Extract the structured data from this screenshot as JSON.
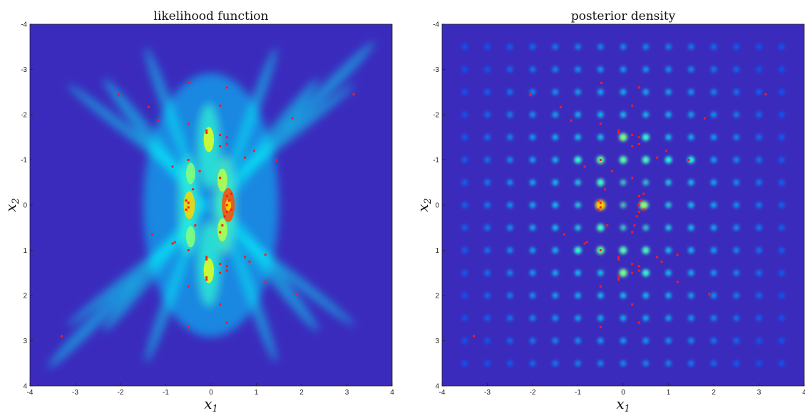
{
  "chart_data": [
    {
      "type": "heatmap",
      "title": "likelihood function",
      "xlabel": "x",
      "xlabel_sub": "1",
      "ylabel": "x",
      "ylabel_sub": "2",
      "xlim": [
        -4,
        4
      ],
      "ylim": [
        -4,
        4
      ],
      "y_axis_direction": "down",
      "x_ticks": [
        "-4",
        "-3",
        "-2",
        "-1",
        "0",
        "1",
        "2",
        "3",
        "4"
      ],
      "y_ticks": [
        "-4",
        "-3",
        "-2",
        "-1",
        "0",
        "1",
        "2",
        "3",
        "4"
      ],
      "grid": false,
      "colormap": "jet",
      "background_color": "#3a2bbd",
      "hot_spots": [
        {
          "x": 0.38,
          "y": 0.0,
          "level": 1.0
        },
        {
          "x": -0.48,
          "y": 0.0,
          "level": 0.7
        },
        {
          "x": -0.05,
          "y": -1.45,
          "level": 0.55
        },
        {
          "x": -0.05,
          "y": 1.45,
          "level": 0.55
        },
        {
          "x": 0.25,
          "y": -0.55,
          "level": 0.45
        },
        {
          "x": 0.25,
          "y": 0.55,
          "level": 0.45
        },
        {
          "x": -0.45,
          "y": -0.7,
          "level": 0.35
        },
        {
          "x": -0.45,
          "y": 0.7,
          "level": 0.35
        }
      ],
      "samples_color": "#ff1a1a",
      "samples": [
        [
          -3.3,
          2.9
        ],
        [
          3.15,
          -2.45
        ],
        [
          -2.05,
          -2.43
        ],
        [
          1.8,
          -1.92
        ],
        [
          1.9,
          1.97
        ],
        [
          -1.38,
          -2.17
        ],
        [
          -1.15,
          -1.87
        ],
        [
          -0.85,
          -0.85
        ],
        [
          -0.5,
          -1.0
        ],
        [
          -0.5,
          -1.8
        ],
        [
          -0.48,
          -2.7
        ],
        [
          0.35,
          -2.6
        ],
        [
          0.2,
          -2.2
        ],
        [
          0.2,
          -1.55
        ],
        [
          0.35,
          -1.5
        ],
        [
          0.35,
          -1.35
        ],
        [
          0.2,
          -1.3
        ],
        [
          -0.1,
          -1.65
        ],
        [
          -0.1,
          -1.6
        ],
        [
          0.75,
          -1.05
        ],
        [
          0.95,
          -1.2
        ],
        [
          1.45,
          -1.0
        ],
        [
          -0.25,
          -0.75
        ],
        [
          -0.4,
          -0.35
        ],
        [
          0.2,
          -0.6
        ],
        [
          -0.55,
          -0.1
        ],
        [
          -0.5,
          -0.05
        ],
        [
          -0.5,
          0.05
        ],
        [
          -0.55,
          0.1
        ],
        [
          0.35,
          -0.2
        ],
        [
          0.4,
          -0.1
        ],
        [
          0.35,
          0.0
        ],
        [
          0.45,
          0.1
        ],
        [
          0.35,
          0.15
        ],
        [
          0.45,
          -0.25
        ],
        [
          0.3,
          0.25
        ],
        [
          -0.35,
          0.45
        ],
        [
          0.25,
          0.45
        ],
        [
          0.2,
          0.6
        ],
        [
          -1.3,
          0.65
        ],
        [
          -0.85,
          0.85
        ],
        [
          -0.8,
          0.82
        ],
        [
          -0.5,
          1.0
        ],
        [
          -0.1,
          1.2
        ],
        [
          -0.1,
          1.15
        ],
        [
          -0.1,
          1.6
        ],
        [
          -0.1,
          1.65
        ],
        [
          0.2,
          1.3
        ],
        [
          0.2,
          1.5
        ],
        [
          0.35,
          1.35
        ],
        [
          0.35,
          1.45
        ],
        [
          0.75,
          1.15
        ],
        [
          0.85,
          1.25
        ],
        [
          1.2,
          1.1
        ],
        [
          1.2,
          1.7
        ],
        [
          -0.5,
          1.8
        ],
        [
          0.2,
          2.2
        ],
        [
          0.35,
          2.6
        ],
        [
          -0.5,
          2.7
        ]
      ]
    },
    {
      "type": "heatmap",
      "title": "posterior density",
      "xlabel": "x",
      "xlabel_sub": "1",
      "ylabel": "x",
      "ylabel_sub": "2",
      "xlim": [
        -4,
        4
      ],
      "ylim": [
        -4,
        4
      ],
      "y_axis_direction": "down",
      "x_ticks": [
        "-4",
        "-3",
        "-2",
        "-1",
        "0",
        "1",
        "2",
        "3",
        "4"
      ],
      "y_ticks": [
        "-4",
        "-3",
        "-2",
        "-1",
        "0",
        "1",
        "2",
        "3",
        "4"
      ],
      "grid": false,
      "colormap": "jet",
      "background_color": "#3a2bbd",
      "grid_peaks_spacing": 0.5,
      "strong_peaks": [
        {
          "x": -0.5,
          "y": 0.0,
          "level": 1.0
        },
        {
          "x": 0.45,
          "y": 0.0,
          "level": 0.6
        },
        {
          "x": 0.0,
          "y": -1.5,
          "level": 0.55
        },
        {
          "x": 0.0,
          "y": 1.5,
          "level": 0.55
        },
        {
          "x": -0.5,
          "y": -1.0,
          "level": 0.5
        },
        {
          "x": -0.5,
          "y": 1.0,
          "level": 0.5
        },
        {
          "x": 0.0,
          "y": -1.0,
          "level": 0.45
        },
        {
          "x": 0.0,
          "y": 1.0,
          "level": 0.45
        },
        {
          "x": -0.5,
          "y": -0.5,
          "level": 0.4
        },
        {
          "x": -0.5,
          "y": 0.5,
          "level": 0.4
        },
        {
          "x": 0.5,
          "y": -1.0,
          "level": 0.4
        },
        {
          "x": 0.5,
          "y": 1.0,
          "level": 0.4
        },
        {
          "x": -1.0,
          "y": -1.0,
          "level": 0.35
        },
        {
          "x": -1.0,
          "y": 1.0,
          "level": 0.35
        },
        {
          "x": 0.5,
          "y": -1.5,
          "level": 0.35
        },
        {
          "x": 0.5,
          "y": 1.5,
          "level": 0.35
        },
        {
          "x": 1.0,
          "y": -1.0,
          "level": 0.3
        },
        {
          "x": 1.5,
          "y": -1.0,
          "level": 0.3
        }
      ],
      "samples_color": "#ff1a1a",
      "samples": [
        [
          -3.3,
          2.9
        ],
        [
          3.15,
          -2.45
        ],
        [
          -2.05,
          -2.43
        ],
        [
          1.8,
          -1.92
        ],
        [
          1.9,
          1.97
        ],
        [
          -1.38,
          -2.17
        ],
        [
          -1.15,
          -1.87
        ],
        [
          -0.85,
          -0.85
        ],
        [
          -0.5,
          -1.0
        ],
        [
          -0.5,
          -1.8
        ],
        [
          -0.48,
          -2.7
        ],
        [
          0.35,
          -2.6
        ],
        [
          0.2,
          -2.2
        ],
        [
          0.2,
          -1.55
        ],
        [
          0.35,
          -1.5
        ],
        [
          0.35,
          -1.35
        ],
        [
          0.2,
          -1.3
        ],
        [
          -0.1,
          -1.65
        ],
        [
          -0.1,
          -1.6
        ],
        [
          0.75,
          -1.05
        ],
        [
          0.95,
          -1.2
        ],
        [
          1.45,
          -1.0
        ],
        [
          -0.25,
          -0.75
        ],
        [
          -0.4,
          -0.35
        ],
        [
          0.2,
          -0.6
        ],
        [
          -0.55,
          -0.1
        ],
        [
          -0.5,
          -0.05
        ],
        [
          -0.5,
          0.05
        ],
        [
          -0.55,
          0.1
        ],
        [
          0.35,
          -0.2
        ],
        [
          0.4,
          -0.1
        ],
        [
          0.35,
          0.0
        ],
        [
          0.45,
          0.1
        ],
        [
          0.35,
          0.15
        ],
        [
          0.45,
          -0.25
        ],
        [
          0.3,
          0.25
        ],
        [
          -0.35,
          0.45
        ],
        [
          0.25,
          0.45
        ],
        [
          0.2,
          0.6
        ],
        [
          -1.3,
          0.65
        ],
        [
          -0.85,
          0.85
        ],
        [
          -0.8,
          0.82
        ],
        [
          -0.5,
          1.0
        ],
        [
          -0.1,
          1.2
        ],
        [
          -0.1,
          1.15
        ],
        [
          -0.1,
          1.6
        ],
        [
          -0.1,
          1.65
        ],
        [
          0.2,
          1.3
        ],
        [
          0.2,
          1.5
        ],
        [
          0.35,
          1.35
        ],
        [
          0.35,
          1.45
        ],
        [
          0.75,
          1.15
        ],
        [
          0.85,
          1.25
        ],
        [
          1.2,
          1.1
        ],
        [
          1.2,
          1.7
        ],
        [
          -0.5,
          1.8
        ],
        [
          0.2,
          2.2
        ],
        [
          0.35,
          2.6
        ],
        [
          -0.5,
          2.7
        ]
      ]
    }
  ]
}
